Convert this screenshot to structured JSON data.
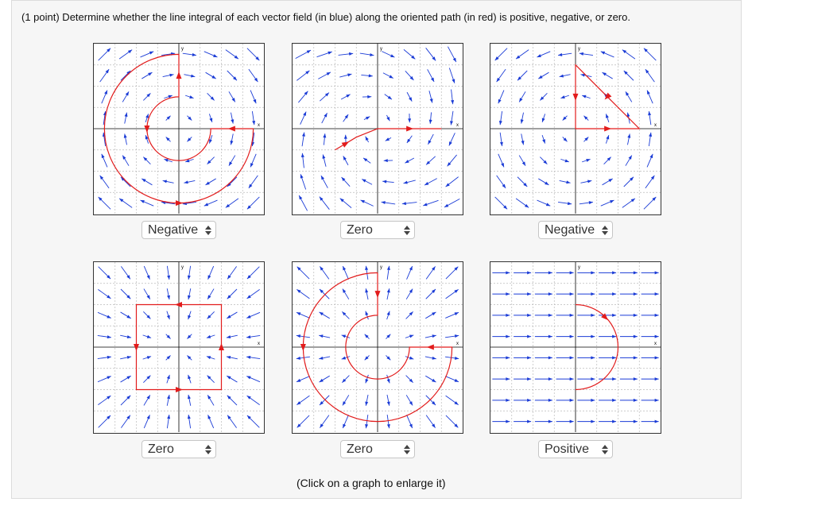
{
  "question": "(1 point) Determine whether the line integral of each vector field (in blue) along the oriented path (in red) is positive, negative, or zero.",
  "graphs": [
    {
      "answer": "Negative",
      "x_label": "x",
      "y_label": "y"
    },
    {
      "answer": "Zero",
      "x_label": "x",
      "y_label": "y"
    },
    {
      "answer": "Negative",
      "x_label": "x",
      "y_label": "y"
    },
    {
      "answer": "Zero",
      "x_label": "x",
      "y_label": "y"
    },
    {
      "answer": "Zero",
      "x_label": "x",
      "y_label": "y"
    },
    {
      "answer": "Positive",
      "x_label": "x",
      "y_label": "y"
    }
  ],
  "note": "(Click on a graph to enlarge it)"
}
